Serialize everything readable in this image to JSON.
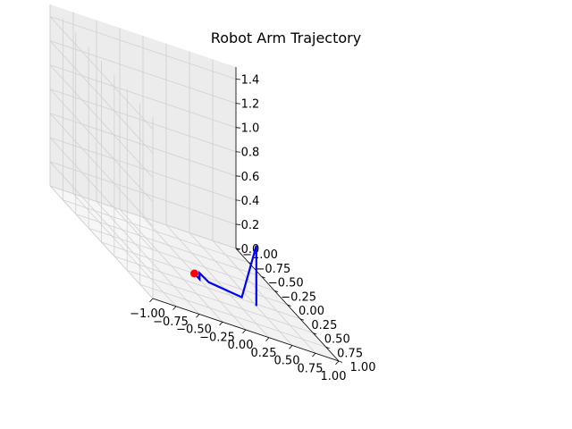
{
  "chart_data": {
    "type": "line",
    "projection": "3d",
    "title": "Robot Arm Trajectory",
    "xlabel": "",
    "ylabel": "",
    "zlabel": "",
    "xlim": [
      -1.0,
      1.0
    ],
    "ylim": [
      -1.0,
      1.0
    ],
    "zlim": [
      0.0,
      1.5
    ],
    "grid": true,
    "x_ticks": [
      "−1.00",
      "−0.75",
      "−0.50",
      "−0.25",
      "0.00",
      "0.25",
      "0.50",
      "0.75",
      "1.00"
    ],
    "y_ticks": [
      "−1.00",
      "−0.75",
      "−0.50",
      "−0.25",
      "0.00",
      "0.25",
      "0.50",
      "0.75",
      "1.00"
    ],
    "z_ticks": [
      "0.0",
      "0.2",
      "0.4",
      "0.6",
      "0.8",
      "1.0",
      "1.2",
      "1.4"
    ],
    "series": [
      {
        "color": "#0000ff",
        "points": [
          {
            "x": 0.0,
            "y": 0.0,
            "z": 0.0
          },
          {
            "x": 0.0,
            "y": 0.1,
            "z": 0.0
          },
          {
            "x": 0.0,
            "y": 0.1,
            "z": 0.05
          },
          {
            "x": 0.1,
            "y": 0.1,
            "z": 0.0
          },
          {
            "x": 0.4,
            "y": 0.2,
            "z": 0.0
          },
          {
            "x": 0.5,
            "y": 0.3,
            "z": 0.5
          },
          {
            "x": 0.5,
            "y": 0.3,
            "z": 0.0
          }
        ]
      }
    ],
    "markers": [
      {
        "color": "#ff0000",
        "x": 0.0,
        "y": 0.0,
        "z": 0.0
      }
    ]
  }
}
